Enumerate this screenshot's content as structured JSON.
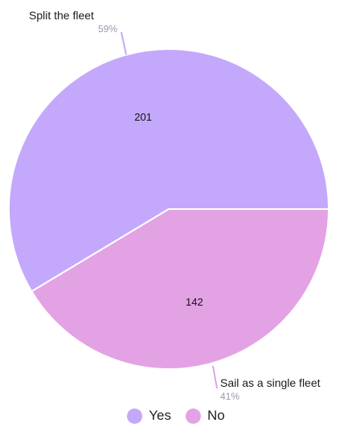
{
  "chart_data": {
    "type": "pie",
    "legend_position": "bottom",
    "slices": [
      {
        "legend": "Yes",
        "label": "Split the fleet",
        "value": 201,
        "percent_label": "59%",
        "color": "#c4a8fb"
      },
      {
        "legend": "No",
        "label": "Sail as a single fleet",
        "value": 142,
        "percent_label": "41%",
        "color": "#e3a2e4"
      }
    ]
  }
}
